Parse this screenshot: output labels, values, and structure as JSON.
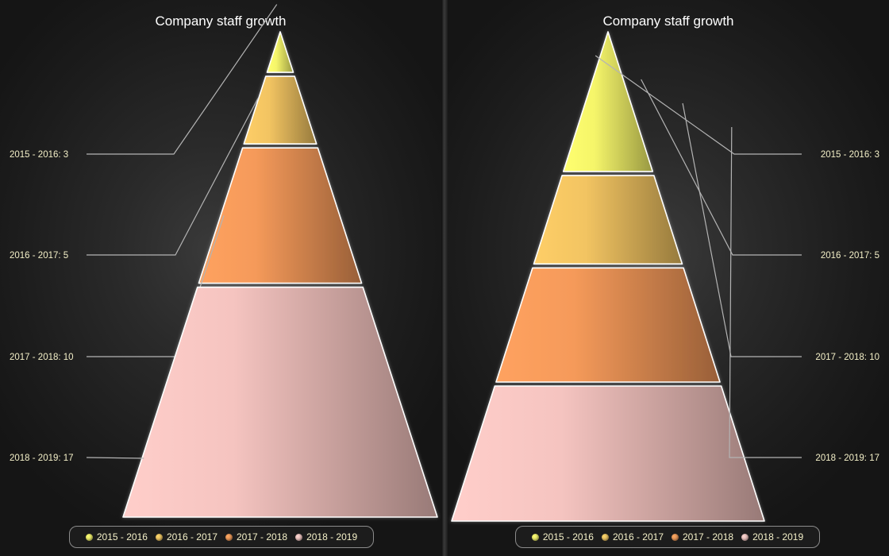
{
  "chart_data": [
    {
      "type": "pyramid",
      "title": "Company staff growth",
      "label_side": "left",
      "mode": "height-proportional",
      "categories": [
        "2015 - 2016",
        "2016 - 2017",
        "2017 - 2018",
        "2018 - 2019"
      ],
      "values": [
        3,
        5,
        10,
        17
      ],
      "labels": [
        "2015 - 2016: 3",
        "2016 - 2017: 5",
        "2017 - 2018: 10",
        "2018 - 2019: 17"
      ],
      "legend": [
        "2015 - 2016",
        "2016 - 2017",
        "2017 - 2018",
        "2018 - 2019"
      ],
      "legend_position": "bottom"
    },
    {
      "type": "pyramid",
      "title": "Company staff growth",
      "label_side": "right",
      "mode": "area-proportional",
      "categories": [
        "2015 - 2016",
        "2016 - 2017",
        "2017 - 2018",
        "2018 - 2019"
      ],
      "values": [
        3,
        5,
        10,
        17
      ],
      "labels": [
        "2015 - 2016: 3",
        "2016 - 2017: 5",
        "2017 - 2018: 10",
        "2018 - 2019: 17"
      ],
      "legend": [
        "2015 - 2016",
        "2016 - 2017",
        "2017 - 2018",
        "2018 - 2019"
      ],
      "legend_position": "bottom"
    }
  ],
  "colors": {
    "2015 - 2016": "#f5f56a",
    "2016 - 2017": "#f2c462",
    "2017 - 2018": "#f59a5a",
    "2018 - 2019": "#f5c4c0",
    "label_text": "#f4f0c8",
    "connector": "#b4b4b4"
  }
}
